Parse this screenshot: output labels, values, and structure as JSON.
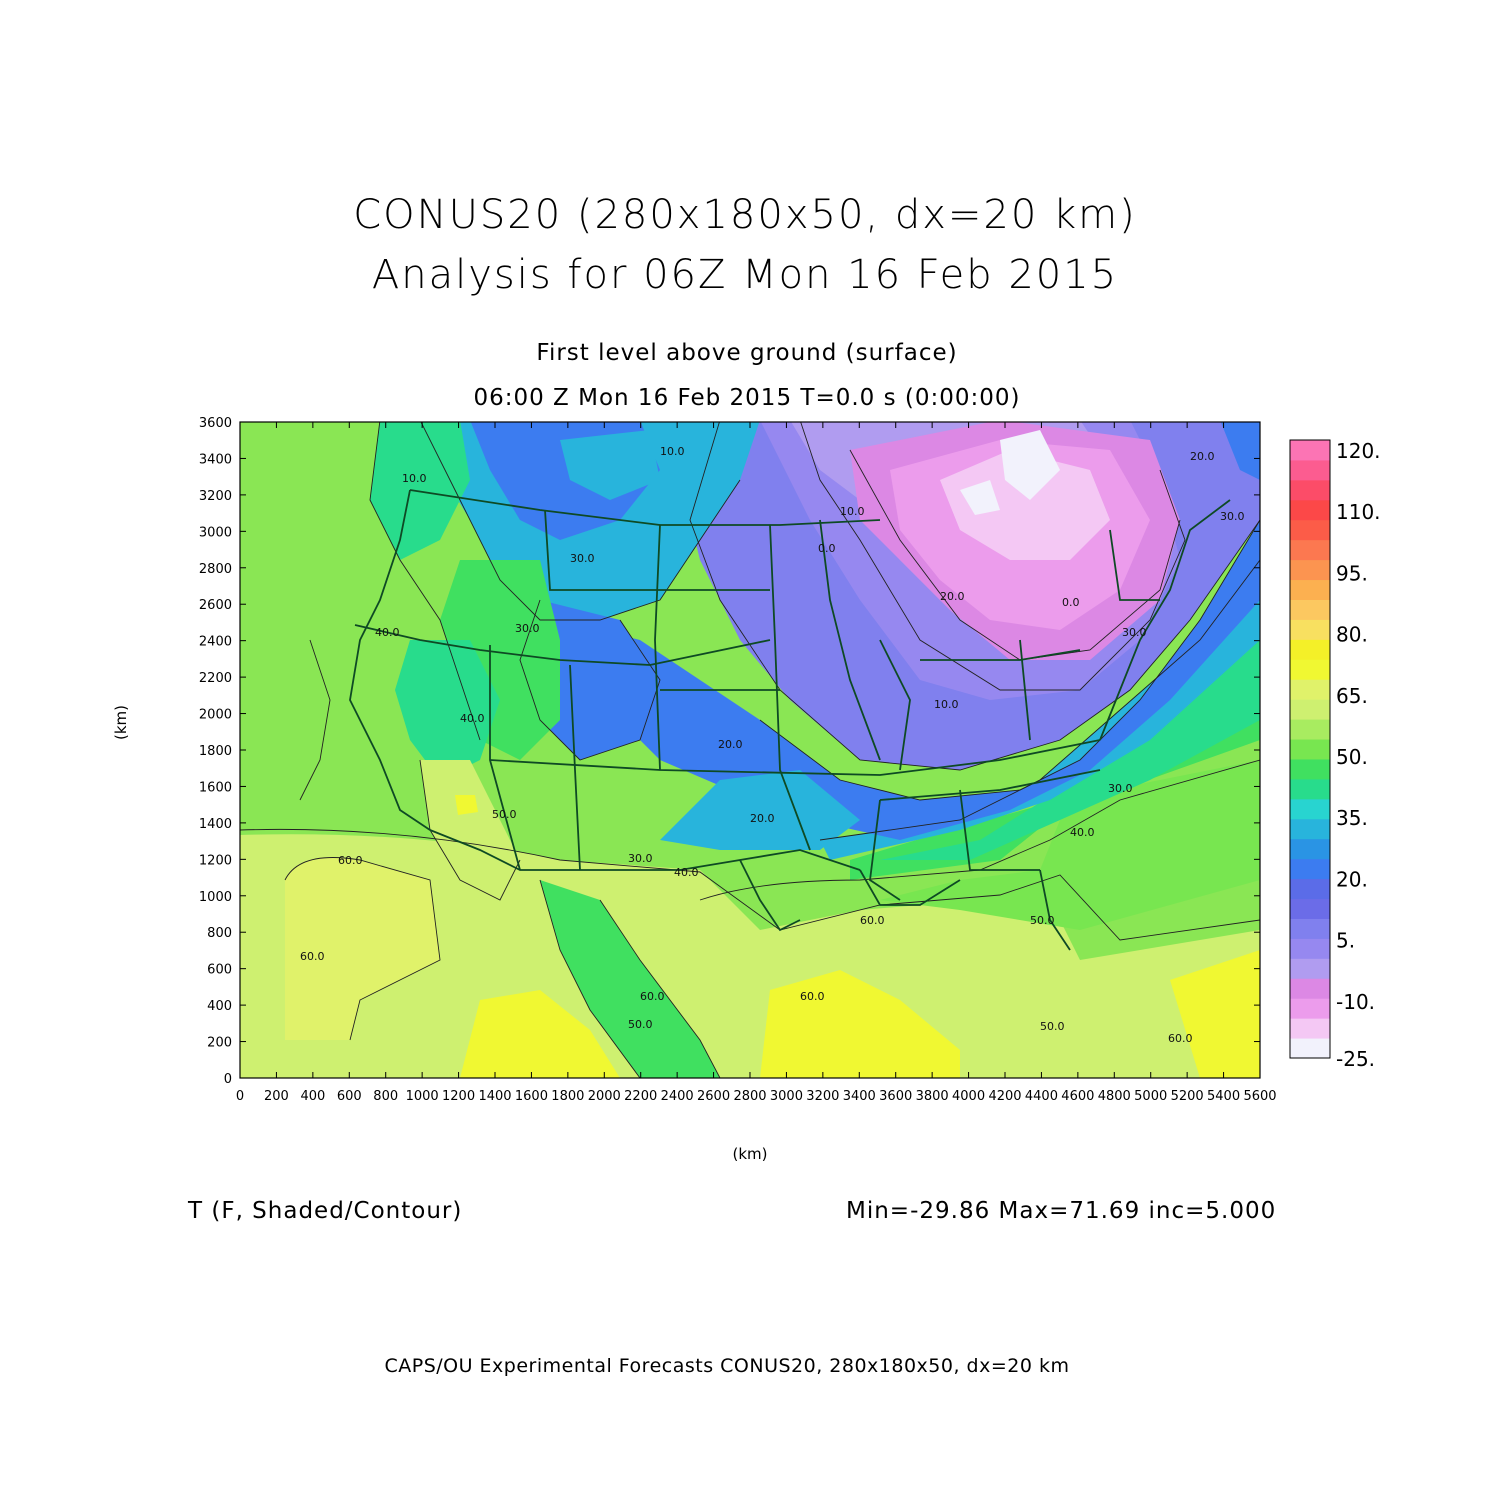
{
  "title": {
    "line1": "CONUS20 (280x180x50, dx=20 km)",
    "line2": "Analysis for 06Z Mon 16 Feb 2015"
  },
  "subtitle": {
    "line1": "First level above ground (surface)",
    "line2": "06:00 Z Mon 16 Feb 2015    T=0.0 s (0:00:00)"
  },
  "axes": {
    "xlabel": "(km)",
    "ylabel": "(km)",
    "xlim": [
      0,
      5600
    ],
    "ylim": [
      0,
      3600
    ],
    "xticks": [
      "0",
      "200",
      "400",
      "600",
      "800",
      "1000",
      "1200",
      "1400",
      "1600",
      "1800",
      "2000",
      "2200",
      "2400",
      "2600",
      "2800",
      "3000",
      "3200",
      "3400",
      "3600",
      "3800",
      "4000",
      "4200",
      "4400",
      "4600",
      "4800",
      "5000",
      "5200",
      "5400",
      "5600"
    ],
    "yticks": [
      "0",
      "200",
      "400",
      "600",
      "800",
      "1000",
      "1200",
      "1400",
      "1600",
      "1800",
      "2000",
      "2200",
      "2400",
      "2600",
      "2800",
      "3000",
      "3200",
      "3400",
      "3600"
    ]
  },
  "variable_label": "T (F, Shaded/Contour)",
  "stats": "Min=-29.86  Max=71.69  inc=5.000",
  "footer": "CAPS/OU Experimental Forecasts  CONUS20, 280x180x50, dx=20 km",
  "colorbar": {
    "labels": [
      "120.",
      "110.",
      "95.",
      "80.",
      "65.",
      "50.",
      "35.",
      "20.",
      "5.",
      "-10.",
      "-25."
    ],
    "colors": [
      "#f2f2fc",
      "#f4c8f4",
      "#ec9cec",
      "#dc88e4",
      "#b09cf0",
      "#9688f0",
      "#8080ee",
      "#6b6ce8",
      "#5b6ce8",
      "#3c7cf0",
      "#2a94e4",
      "#28b4dc",
      "#28d4d0",
      "#28dc8c",
      "#40e060",
      "#78e650",
      "#a8ec60",
      "#cef070",
      "#e0f26a",
      "#f0f832",
      "#f4f028",
      "#f8e060",
      "#fcc860",
      "#fcb050",
      "#fc9450",
      "#fc7850",
      "#fc5c48",
      "#fc4848",
      "#fc4c68",
      "#fc5c90",
      "#fc74b4"
    ]
  },
  "map": {
    "contour_labels": [
      "10.0",
      "10.0",
      "10.0",
      "0.0",
      "20.0",
      "0.0",
      "30.0",
      "30.0",
      "40.0",
      "40.0",
      "30.0",
      "20.0",
      "10.0",
      "50.0",
      "60.0",
      "60.0",
      "50.0",
      "40.0",
      "30.0",
      "20.0",
      "30.0",
      "40.0",
      "50.0",
      "60.0",
      "60.0",
      "50.0",
      "60.0",
      "60.0",
      "30.0",
      "20.0"
    ]
  }
}
